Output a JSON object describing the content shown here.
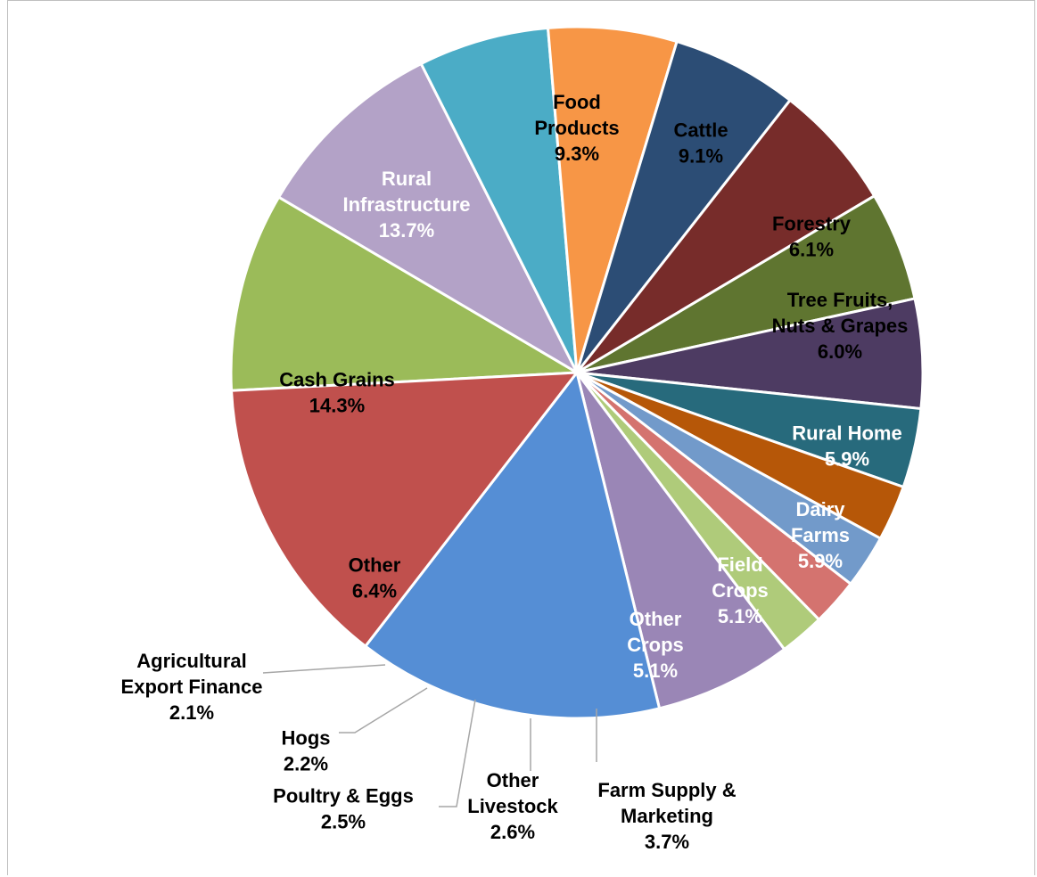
{
  "chart_data": {
    "type": "pie",
    "title": "",
    "slices": [
      {
        "label_lines": [
          "Food",
          "Products"
        ],
        "pct_label": "9.3%",
        "value": 9.3,
        "color": "#9BBB59",
        "text_color": "#000000"
      },
      {
        "label_lines": [
          "Cattle"
        ],
        "pct_label": "9.1%",
        "value": 9.1,
        "color": "#B3A2C7",
        "text_color": "#000000"
      },
      {
        "label_lines": [
          "Forestry"
        ],
        "pct_label": "6.1%",
        "value": 6.1,
        "color": "#4BACC6",
        "text_color": "#000000"
      },
      {
        "label_lines": [
          "Tree Fruits,",
          "Nuts & Grapes"
        ],
        "pct_label": "6.0%",
        "value": 6.0,
        "color": "#F79646",
        "text_color": "#000000"
      },
      {
        "label_lines": [
          "Rural Home"
        ],
        "pct_label": "5.9%",
        "value": 5.9,
        "color": "#2C4D75",
        "text_color": "#ffffff"
      },
      {
        "label_lines": [
          "Dairy",
          "Farms"
        ],
        "pct_label": "5.9%",
        "value": 5.9,
        "color": "#772C2A",
        "text_color": "#ffffff"
      },
      {
        "label_lines": [
          "Field",
          "Crops"
        ],
        "pct_label": "5.1%",
        "value": 5.1,
        "color": "#5F7530",
        "text_color": "#ffffff"
      },
      {
        "label_lines": [
          "Other",
          "Crops"
        ],
        "pct_label": "5.1%",
        "value": 5.1,
        "color": "#4D3B62",
        "text_color": "#ffffff"
      },
      {
        "label_lines": [
          "Farm Supply &",
          "Marketing"
        ],
        "pct_label": "3.7%",
        "value": 3.7,
        "color": "#276A7C",
        "text_color": "#000000"
      },
      {
        "label_lines": [
          "Other",
          "Livestock"
        ],
        "pct_label": "2.6%",
        "value": 2.6,
        "color": "#B65708",
        "text_color": "#000000"
      },
      {
        "label_lines": [
          "Poultry & Eggs"
        ],
        "pct_label": "2.5%",
        "value": 2.5,
        "color": "#729ACA",
        "text_color": "#000000"
      },
      {
        "label_lines": [
          "Hogs"
        ],
        "pct_label": "2.2%",
        "value": 2.2,
        "color": "#D4736F",
        "text_color": "#000000"
      },
      {
        "label_lines": [
          "Agricultural",
          "Export Finance"
        ],
        "pct_label": "2.1%",
        "value": 2.1,
        "color": "#AFCB7A",
        "text_color": "#000000"
      },
      {
        "label_lines": [
          "Other"
        ],
        "pct_label": "6.4%",
        "value": 6.4,
        "color": "#9A86B6",
        "text_color": "#000000"
      },
      {
        "label_lines": [
          "Cash Grains"
        ],
        "pct_label": "14.3%",
        "value": 14.3,
        "color": "#558ED5",
        "text_color": "#000000"
      },
      {
        "label_lines": [
          "Rural",
          "Infrastructure"
        ],
        "pct_label": "13.7%",
        "value": 13.7,
        "color": "#C0504D",
        "text_color": "#ffffff"
      }
    ]
  }
}
